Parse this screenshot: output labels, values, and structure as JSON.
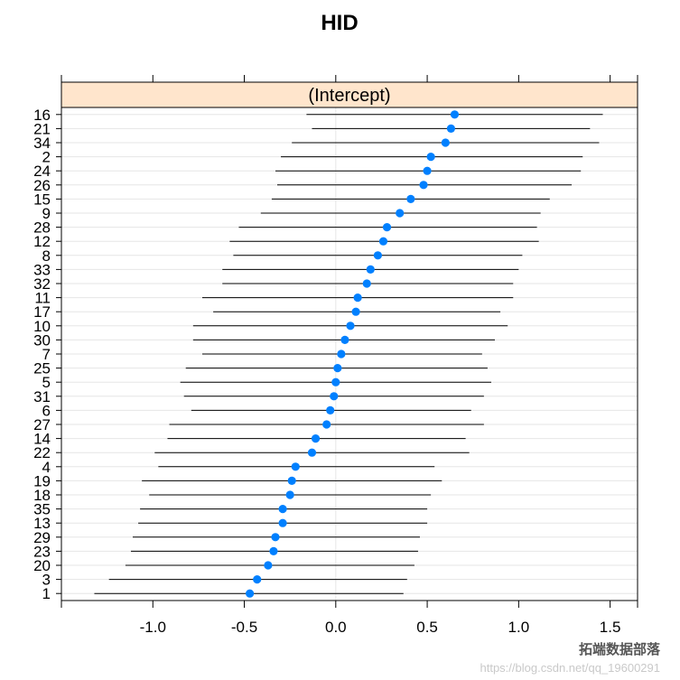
{
  "chart_data": {
    "type": "dotplot-ci",
    "title": "HID",
    "panel_label": "(Intercept)",
    "xlim": [
      -1.5,
      1.65
    ],
    "x_ticks": [
      -1.0,
      -0.5,
      0.0,
      0.5,
      1.0,
      1.5
    ],
    "x_tick_labels": [
      "-1.0",
      "-0.5",
      "0.0",
      "0.5",
      "1.0",
      "1.5"
    ],
    "grid": true,
    "colors": {
      "point": "#0080ff",
      "line": "#000000",
      "strip": "#ffe5cc",
      "grid": "#e6e6e6"
    },
    "rows": [
      {
        "label": "16",
        "value": 0.65,
        "lower": -0.16,
        "upper": 1.46
      },
      {
        "label": "21",
        "value": 0.63,
        "lower": -0.13,
        "upper": 1.39
      },
      {
        "label": "34",
        "value": 0.6,
        "lower": -0.24,
        "upper": 1.44
      },
      {
        "label": "2",
        "value": 0.52,
        "lower": -0.3,
        "upper": 1.35
      },
      {
        "label": "24",
        "value": 0.5,
        "lower": -0.33,
        "upper": 1.34
      },
      {
        "label": "26",
        "value": 0.48,
        "lower": -0.32,
        "upper": 1.29
      },
      {
        "label": "15",
        "value": 0.41,
        "lower": -0.35,
        "upper": 1.17
      },
      {
        "label": "9",
        "value": 0.35,
        "lower": -0.41,
        "upper": 1.12
      },
      {
        "label": "28",
        "value": 0.28,
        "lower": -0.53,
        "upper": 1.1
      },
      {
        "label": "12",
        "value": 0.26,
        "lower": -0.58,
        "upper": 1.11
      },
      {
        "label": "8",
        "value": 0.23,
        "lower": -0.56,
        "upper": 1.02
      },
      {
        "label": "33",
        "value": 0.19,
        "lower": -0.62,
        "upper": 1.0
      },
      {
        "label": "32",
        "value": 0.17,
        "lower": -0.62,
        "upper": 0.97
      },
      {
        "label": "11",
        "value": 0.12,
        "lower": -0.73,
        "upper": 0.97
      },
      {
        "label": "17",
        "value": 0.11,
        "lower": -0.67,
        "upper": 0.9
      },
      {
        "label": "10",
        "value": 0.08,
        "lower": -0.78,
        "upper": 0.94
      },
      {
        "label": "30",
        "value": 0.05,
        "lower": -0.78,
        "upper": 0.87
      },
      {
        "label": "7",
        "value": 0.03,
        "lower": -0.73,
        "upper": 0.8
      },
      {
        "label": "25",
        "value": 0.01,
        "lower": -0.82,
        "upper": 0.83
      },
      {
        "label": "5",
        "value": 0.0,
        "lower": -0.85,
        "upper": 0.85
      },
      {
        "label": "31",
        "value": -0.01,
        "lower": -0.83,
        "upper": 0.81
      },
      {
        "label": "6",
        "value": -0.03,
        "lower": -0.79,
        "upper": 0.74
      },
      {
        "label": "27",
        "value": -0.05,
        "lower": -0.91,
        "upper": 0.81
      },
      {
        "label": "14",
        "value": -0.11,
        "lower": -0.92,
        "upper": 0.71
      },
      {
        "label": "22",
        "value": -0.13,
        "lower": -0.99,
        "upper": 0.73
      },
      {
        "label": "4",
        "value": -0.22,
        "lower": -0.97,
        "upper": 0.54
      },
      {
        "label": "19",
        "value": -0.24,
        "lower": -1.06,
        "upper": 0.58
      },
      {
        "label": "18",
        "value": -0.25,
        "lower": -1.02,
        "upper": 0.52
      },
      {
        "label": "35",
        "value": -0.29,
        "lower": -1.07,
        "upper": 0.5
      },
      {
        "label": "13",
        "value": -0.29,
        "lower": -1.08,
        "upper": 0.5
      },
      {
        "label": "29",
        "value": -0.33,
        "lower": -1.11,
        "upper": 0.46
      },
      {
        "label": "23",
        "value": -0.34,
        "lower": -1.12,
        "upper": 0.45
      },
      {
        "label": "20",
        "value": -0.37,
        "lower": -1.15,
        "upper": 0.43
      },
      {
        "label": "3",
        "value": -0.43,
        "lower": -1.24,
        "upper": 0.39
      },
      {
        "label": "1",
        "value": -0.47,
        "lower": -1.32,
        "upper": 0.37
      }
    ]
  },
  "watermark": {
    "brand": "拓端数据部落",
    "url": "https://blog.csdn.net/qq_19600291"
  }
}
